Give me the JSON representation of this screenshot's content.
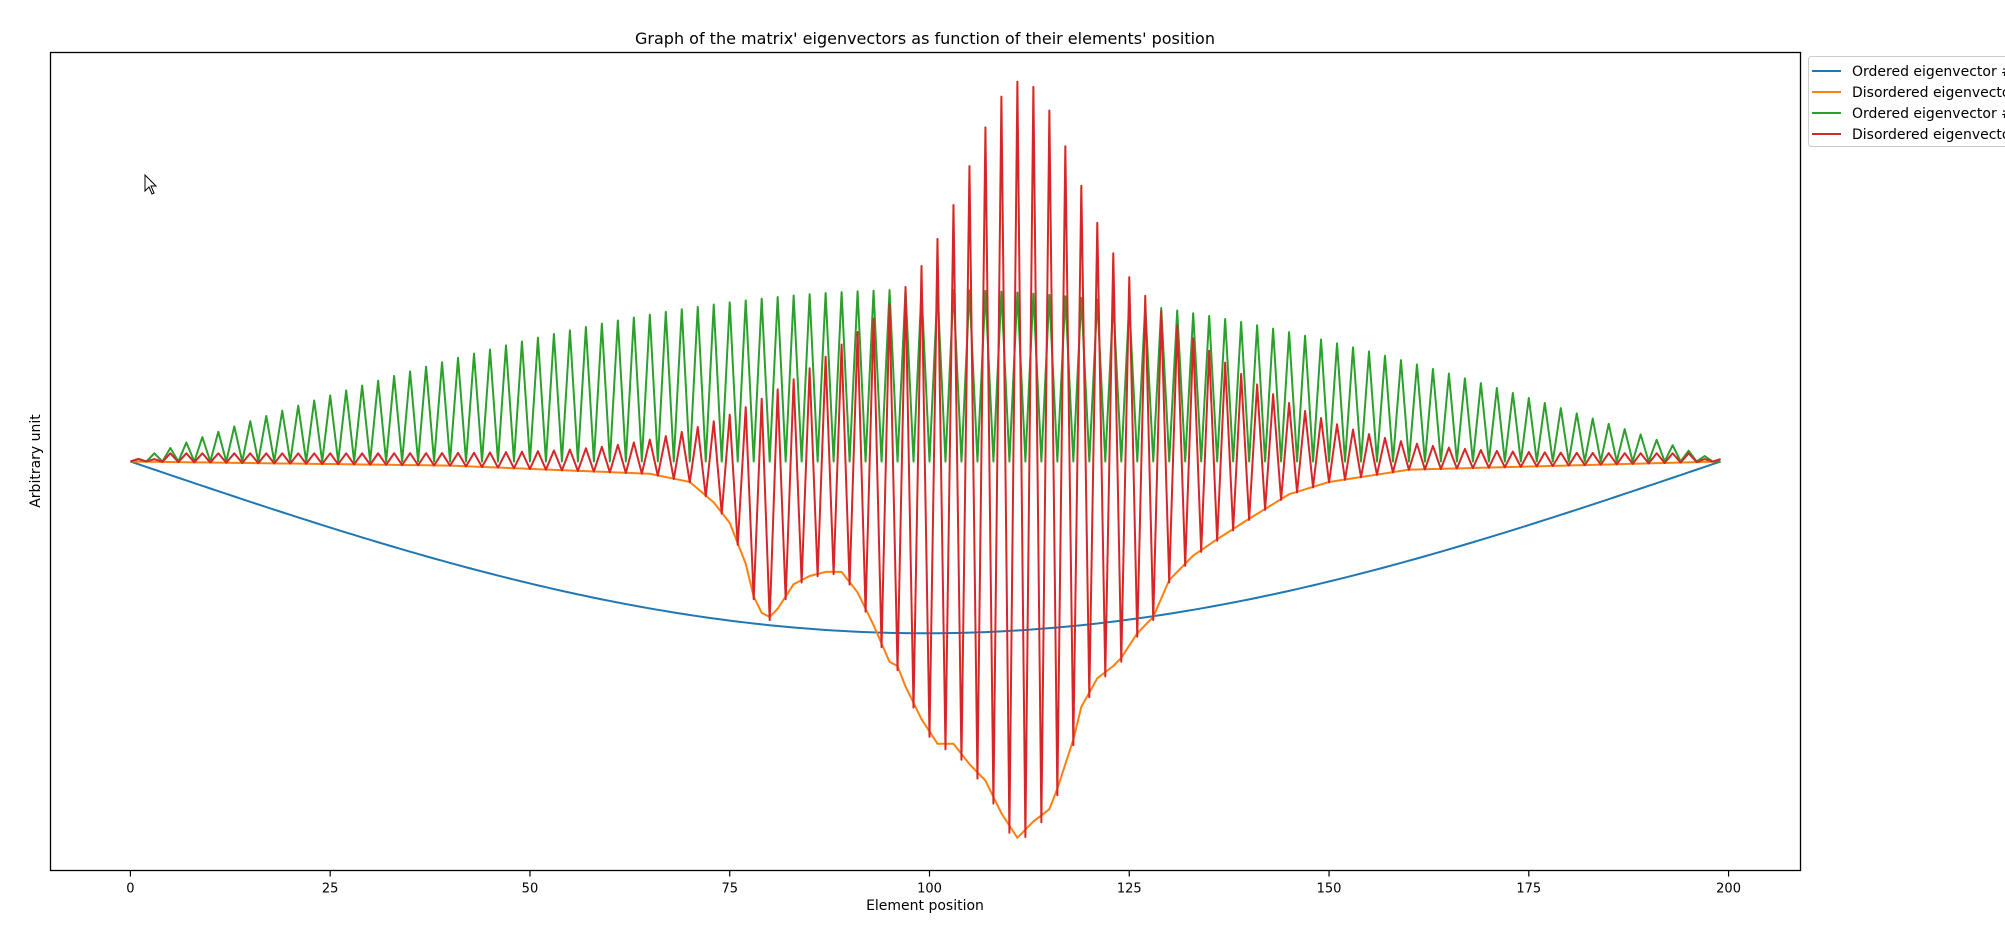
{
  "chart_data": {
    "type": "line",
    "title": "Graph of the matrix' eigenvectors as function of their elements' position",
    "xlabel": "Element position",
    "ylabel": "Arbitrary unit",
    "xlim": [
      -10,
      209
    ],
    "ylim": [
      -1.0,
      1.0
    ],
    "x_ticks": [
      0,
      25,
      50,
      75,
      100,
      125,
      150,
      175,
      200
    ],
    "y_ticks": [],
    "grid": false,
    "legend_position": "outside-top-right",
    "series": [
      {
        "name": "Ordered eigenvector #",
        "color": "#1f77b4",
        "kind": "sine_envelope",
        "x": [
          0,
          199
        ],
        "amplitude": 0.42,
        "values_at": {
          "0": 0.0,
          "50": -0.3,
          "100": -0.42,
          "150": -0.3,
          "199": 0.0
        }
      },
      {
        "name": "Disordered eigenvecto",
        "color": "#ff7f0e",
        "kind": "localized_profile",
        "x": [
          0,
          199
        ],
        "keypoints": [
          [
            0,
            0.0
          ],
          [
            40,
            -0.01
          ],
          [
            65,
            -0.03
          ],
          [
            70,
            -0.05
          ],
          [
            73,
            -0.1
          ],
          [
            75,
            -0.15
          ],
          [
            77,
            -0.25
          ],
          [
            78,
            -0.33
          ],
          [
            79,
            -0.37
          ],
          [
            80,
            -0.38
          ],
          [
            81,
            -0.36
          ],
          [
            83,
            -0.3
          ],
          [
            85,
            -0.28
          ],
          [
            87,
            -0.27
          ],
          [
            89,
            -0.27
          ],
          [
            91,
            -0.32
          ],
          [
            93,
            -0.4
          ],
          [
            95,
            -0.49
          ],
          [
            96,
            -0.5
          ],
          [
            97,
            -0.55
          ],
          [
            99,
            -0.63
          ],
          [
            101,
            -0.69
          ],
          [
            103,
            -0.69
          ],
          [
            105,
            -0.74
          ],
          [
            107,
            -0.78
          ],
          [
            109,
            -0.86
          ],
          [
            111,
            -0.92
          ],
          [
            113,
            -0.88
          ],
          [
            115,
            -0.85
          ],
          [
            116,
            -0.8
          ],
          [
            118,
            -0.68
          ],
          [
            119,
            -0.6
          ],
          [
            121,
            -0.53
          ],
          [
            123,
            -0.5
          ],
          [
            124,
            -0.48
          ],
          [
            126,
            -0.42
          ],
          [
            127,
            -0.4
          ],
          [
            128,
            -0.38
          ],
          [
            130,
            -0.29
          ],
          [
            133,
            -0.23
          ],
          [
            136,
            -0.19
          ],
          [
            140,
            -0.14
          ],
          [
            145,
            -0.08
          ],
          [
            150,
            -0.05
          ],
          [
            160,
            -0.02
          ],
          [
            199,
            0.0
          ]
        ]
      },
      {
        "name": "Ordered eigenvector #",
        "color": "#2ca02c",
        "kind": "alternating_sine",
        "x": [
          0,
          199
        ],
        "amplitude": 0.42,
        "values_at": {
          "0": 0.0,
          "50": 0.3,
          "100": 0.42,
          "150": 0.3,
          "199": 0.0
        }
      },
      {
        "name": "Disordered eigenvecto",
        "color": "#d62728",
        "kind": "alternating_localized",
        "x": [
          0,
          199
        ],
        "center": 111.5,
        "peak": 0.91,
        "values_at": {
          "0": 0.0,
          "30": 0.01,
          "60": 0.05,
          "80": 0.32,
          "95": 0.5,
          "111": 0.91,
          "125": 0.5,
          "140": 0.18,
          "199": 0.0
        }
      }
    ]
  }
}
